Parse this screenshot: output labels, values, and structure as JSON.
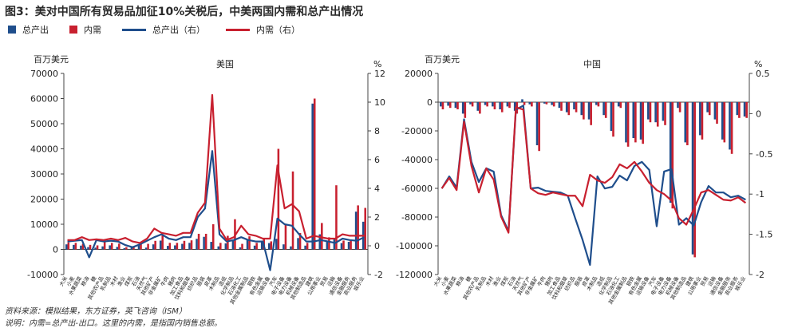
{
  "figure": {
    "title": "图3：美对中国所有贸易品加征10%关税后，中美两国内需和总产出情况",
    "source": "资料来源：模拟结果，东方证券，英飞咨询（ISM）",
    "note": "说明：内需=总产出-出口。这里的内需，是指国内销售总额。",
    "legend": [
      {
        "label": "总产出",
        "kind": "bar",
        "color": "#1f4e8c"
      },
      {
        "label": "内需",
        "kind": "bar",
        "color": "#c8202f"
      },
      {
        "label": "总产出（右）",
        "kind": "line",
        "color": "#1f4e8c"
      },
      {
        "label": "内需（右）",
        "kind": "line",
        "color": "#c8202f"
      }
    ]
  },
  "colors": {
    "output": "#1f4e8c",
    "demand": "#c8202f",
    "axis": "#444444"
  },
  "chart_data": [
    {
      "type": "bar",
      "title": "美国",
      "ylabel": "百万美元",
      "y2label": "%",
      "ylim": [
        -10000,
        70000
      ],
      "yticks": [
        -10000,
        0,
        10000,
        20000,
        30000,
        40000,
        50000,
        60000,
        70000
      ],
      "y2lim": [
        -2,
        12
      ],
      "y2ticks": [
        -2,
        0,
        2,
        4,
        6,
        8,
        10,
        12
      ],
      "categories": [
        "大米",
        "小麦",
        "水果蔬菜",
        "粮油",
        "糖",
        "其他农产品",
        "乳制品",
        "木材",
        "渔业",
        "煤炭",
        "石油",
        "天然气",
        "其他矿产",
        "非金属矿",
        "牛肉",
        "猪肉",
        "加工食品",
        "饮料和烟草",
        "纺织品",
        "服装",
        "皮革",
        "木制品",
        "造纸",
        "化学制品",
        "石油化工",
        "其他金属制品",
        "钢铁",
        "有色金属",
        "运输设备",
        "汽车",
        "电子设备",
        "电力设备",
        "机械设备",
        "其他制造品",
        "建筑",
        "公用事业",
        "贸易",
        "运输",
        "通信设备",
        "金融服务",
        "商业服务",
        "娱乐业"
      ],
      "bar_series": [
        {
          "name": "总产出",
          "values": [
            2000,
            1800,
            1500,
            900,
            700,
            1200,
            1600,
            1000,
            500,
            900,
            1800,
            700,
            2000,
            3500,
            1400,
            1600,
            2200,
            2600,
            4200,
            5000,
            3000,
            1200,
            2400,
            3500,
            800,
            4000,
            1500,
            3000,
            2500,
            4200,
            2000,
            1200,
            4500,
            1500,
            58000,
            6000,
            3000,
            4200,
            2500,
            3000,
            15000,
            11000
          ]
        },
        {
          "name": "内需",
          "values": [
            2800,
            2600,
            2200,
            1800,
            1600,
            3000,
            2600,
            2300,
            900,
            1300,
            2600,
            2200,
            3400,
            5800,
            2600,
            2600,
            3400,
            3600,
            6200,
            6200,
            10000,
            2600,
            5400,
            12000,
            2200,
            5200,
            2600,
            4600,
            3200,
            40000,
            10000,
            31000,
            6500,
            2600,
            60000,
            10500,
            4800,
            25500,
            3500,
            3600,
            17500,
            16500
          ]
        }
      ],
      "line_series": [
        {
          "name": "总产出（右）",
          "values": [
            0.3,
            0.35,
            0.4,
            -0.8,
            0.4,
            0.3,
            0.35,
            0.3,
            0.05,
            -0.1,
            0.1,
            0.35,
            0.6,
            0.8,
            0.5,
            0.4,
            0.6,
            0.6,
            2.0,
            2.6,
            6.6,
            0.8,
            0.3,
            0.4,
            0.6,
            0.4,
            0.3,
            0.3,
            -1.7,
            1.9,
            1.5,
            1.4,
            0.8,
            0.3,
            0.3,
            0.4,
            0.3,
            0.2,
            0.5,
            0.4,
            0.35,
            0.6
          ]
        },
        {
          "name": "内需（右）",
          "values": [
            0.4,
            0.4,
            0.6,
            0.4,
            0.45,
            0.4,
            0.5,
            0.4,
            0.55,
            0.3,
            0.2,
            0.5,
            1.2,
            0.9,
            0.8,
            0.7,
            0.9,
            0.9,
            2.3,
            3.0,
            10.5,
            1.2,
            0.4,
            0.6,
            1.4,
            0.8,
            0.7,
            0.5,
            0.5,
            5.6,
            2.6,
            2.9,
            2.4,
            0.5,
            0.7,
            0.6,
            0.5,
            0.5,
            0.8,
            0.7,
            0.7,
            0.7
          ]
        }
      ]
    },
    {
      "type": "bar",
      "title": "中国",
      "ylabel": "百万美元",
      "y2label": "%",
      "ylim": [
        -120000,
        20000
      ],
      "yticks": [
        -120000,
        -100000,
        -80000,
        -60000,
        -40000,
        -20000,
        0,
        20000
      ],
      "y2lim": [
        -2,
        0.5
      ],
      "y2ticks": [
        -2,
        -1.5,
        -1,
        -0.5,
        0,
        0.5
      ],
      "categories": [
        "大米",
        "小麦",
        "水果蔬菜",
        "粮油",
        "糖",
        "其他农产品",
        "乳制品",
        "木材",
        "渔业",
        "煤炭",
        "石油",
        "天然气",
        "其他矿产",
        "非金属矿",
        "牛肉",
        "猪肉",
        "加工食品",
        "饮料和烟草",
        "纺织品",
        "服装",
        "皮革",
        "木制品",
        "造纸",
        "化学制品",
        "石油化工",
        "其他金属制品",
        "钢铁",
        "有色金属",
        "运输设备",
        "汽车",
        "电子设备",
        "电力设备",
        "机械设备",
        "其他制造品",
        "建筑",
        "公用事业",
        "贸易",
        "运输",
        "通信设备",
        "金融服务",
        "商业服务",
        "娱乐业"
      ],
      "bar_series": [
        {
          "name": "总产出",
          "values": [
            -3000,
            -2500,
            -4000,
            -8000,
            -1500,
            -6000,
            -2000,
            -3000,
            -5000,
            -3000,
            -6000,
            2000,
            -1500,
            -30000,
            -1000,
            -2000,
            -4000,
            -7000,
            -5000,
            -9000,
            -12000,
            -2000,
            -9000,
            -20000,
            -3000,
            -28000,
            -25000,
            -26000,
            -12000,
            -14000,
            -13000,
            -70000,
            -4000,
            -28000,
            -106000,
            -23000,
            -7000,
            -12000,
            -26000,
            -33000,
            -9000,
            -10000
          ]
        },
        {
          "name": "内需",
          "values": [
            -5000,
            -4000,
            -5000,
            -11000,
            -3000,
            -8000,
            -3000,
            -5000,
            -7000,
            -4000,
            -8000,
            -2000,
            -3000,
            -34000,
            -1500,
            -3000,
            -6000,
            -9000,
            -7000,
            -12000,
            -16000,
            -3000,
            -11000,
            -24000,
            -4000,
            -31000,
            -28000,
            -29000,
            -14000,
            -17000,
            -16000,
            -74000,
            -7000,
            -30000,
            -108000,
            -26000,
            -9000,
            -15000,
            -28000,
            -36000,
            -11000,
            -11000
          ]
        }
      ],
      "line_series": [
        {
          "name": "总产出（右）",
          "values": [
            -0.93,
            -0.78,
            -0.92,
            -0.07,
            -0.6,
            -0.85,
            -0.68,
            -0.72,
            -1.26,
            -1.46,
            0.05,
            0.1,
            -0.93,
            -0.92,
            -0.96,
            -0.97,
            -0.98,
            -1.02,
            -1.3,
            -1.57,
            -1.88,
            -0.78,
            -0.93,
            -0.91,
            -0.77,
            -0.83,
            -0.65,
            -0.6,
            -0.7,
            -1.4,
            -0.72,
            -0.69,
            -1.38,
            -1.3,
            -1.39,
            -1.1,
            -0.9,
            -0.98,
            -0.98,
            -1.04,
            -1.02,
            -1.07
          ]
        },
        {
          "name": "内需（右）",
          "values": [
            -0.93,
            -0.8,
            -0.95,
            -0.1,
            -0.65,
            -0.98,
            -0.68,
            -0.82,
            -1.28,
            -1.48,
            0.08,
            0.05,
            -0.93,
            -0.99,
            -1.01,
            -0.98,
            -1.0,
            -1.02,
            -1.02,
            -1.15,
            -0.76,
            -0.83,
            -0.86,
            -0.79,
            -0.63,
            -0.68,
            -0.6,
            -0.72,
            -0.86,
            -0.95,
            -1.0,
            -1.08,
            -1.3,
            -1.38,
            -1.19,
            -0.98,
            -0.95,
            -1.01,
            -1.07,
            -1.08,
            -1.04,
            -1.11
          ]
        }
      ]
    }
  ]
}
